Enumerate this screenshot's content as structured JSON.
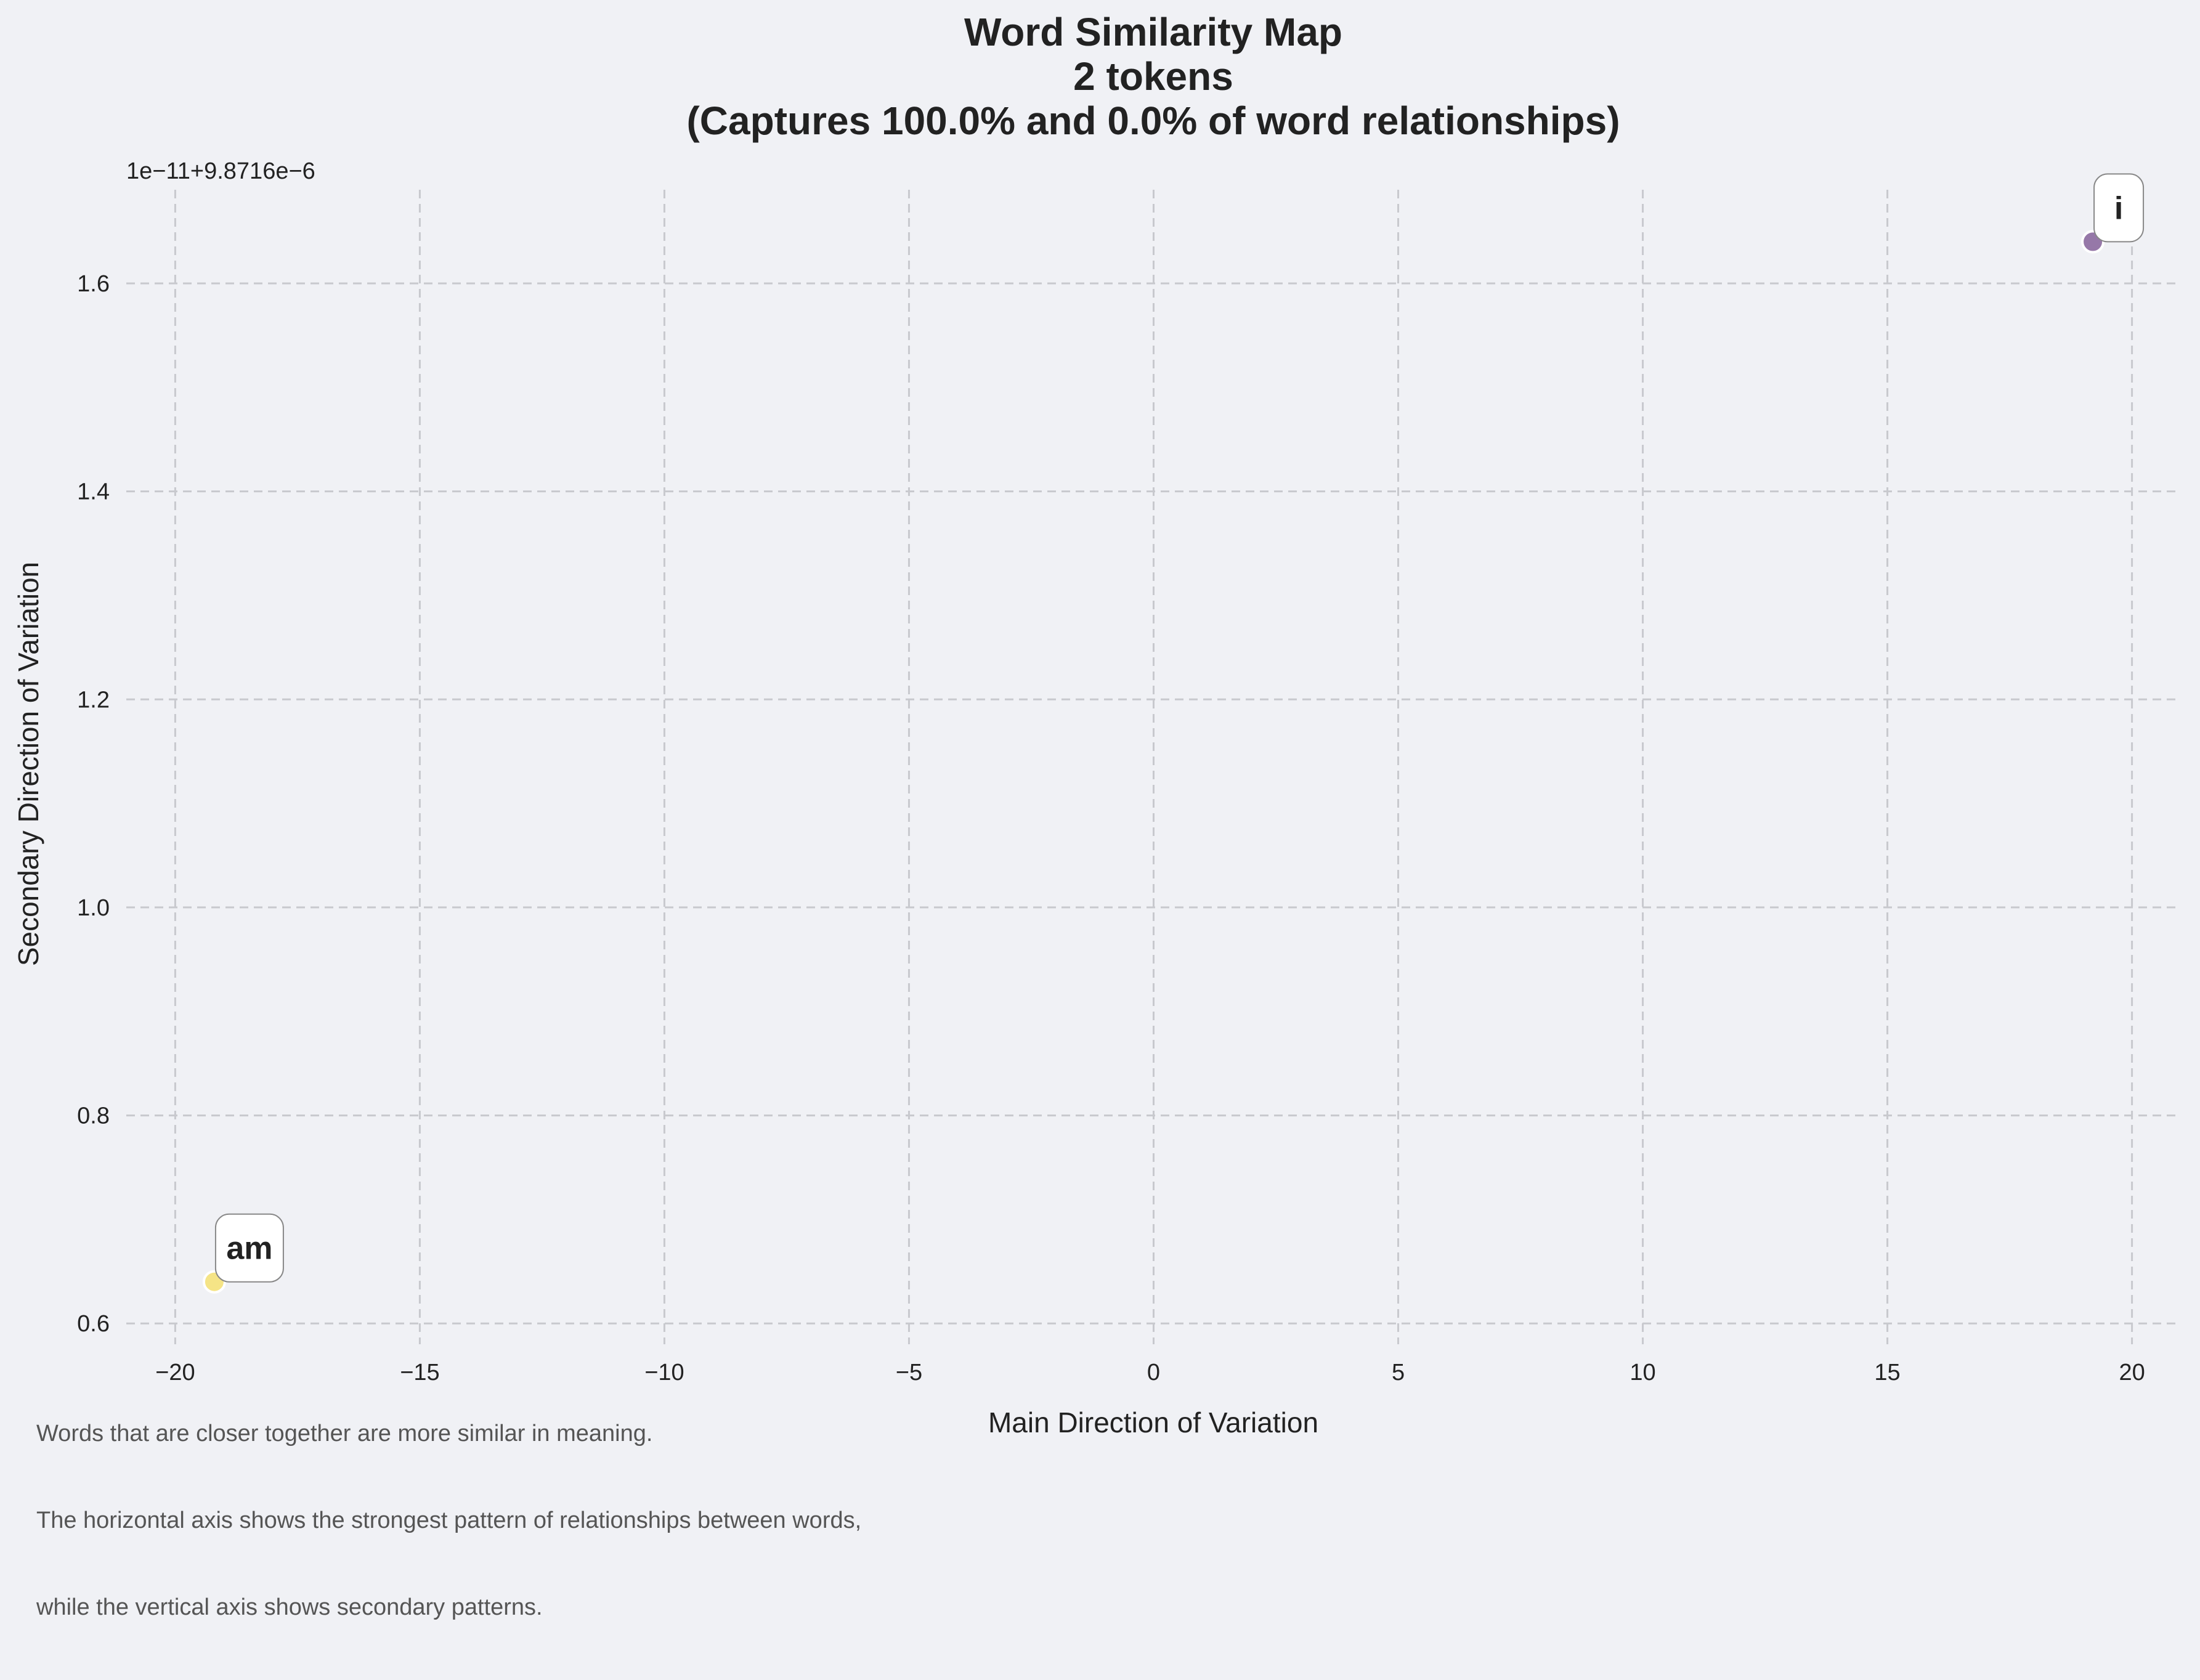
{
  "chart_data": {
    "type": "scatter",
    "title": "Word Similarity Map",
    "subtitle": "2 tokens",
    "subtitle2": "(Captures 100.0% and 0.0% of word relationships)",
    "xlabel": "Main Direction of Variation",
    "ylabel": "Secondary Direction of Variation",
    "y_offset_label": "1e−11+9.8716e−6",
    "xlim": [
      -21,
      21
    ],
    "ylim": [
      0.58,
      1.69
    ],
    "x_ticks": [
      -20,
      -15,
      -10,
      -5,
      0,
      5,
      10,
      15,
      20
    ],
    "x_tick_labels": [
      "−20",
      "−15",
      "−10",
      "−5",
      "0",
      "5",
      "10",
      "15",
      "20"
    ],
    "y_ticks": [
      0.6,
      0.8,
      1.0,
      1.2,
      1.4,
      1.6
    ],
    "y_tick_labels": [
      "0.6",
      "0.8",
      "1.0",
      "1.2",
      "1.4",
      "1.6"
    ],
    "grid": true,
    "points": [
      {
        "label": "i",
        "x": 19.2,
        "y": 1.64,
        "color": "#8c6aa0"
      },
      {
        "label": "am",
        "x": -19.2,
        "y": 0.64,
        "color": "#f5e27a"
      }
    ]
  },
  "footnote": [
    "Words that are closer together are more similar in meaning.",
    "The horizontal axis shows the strongest pattern of relationships between words,",
    "while the vertical axis shows secondary patterns."
  ],
  "colors": {
    "background": "#f0f1f5",
    "grid": "#c8c9ce",
    "text": "#222222"
  }
}
